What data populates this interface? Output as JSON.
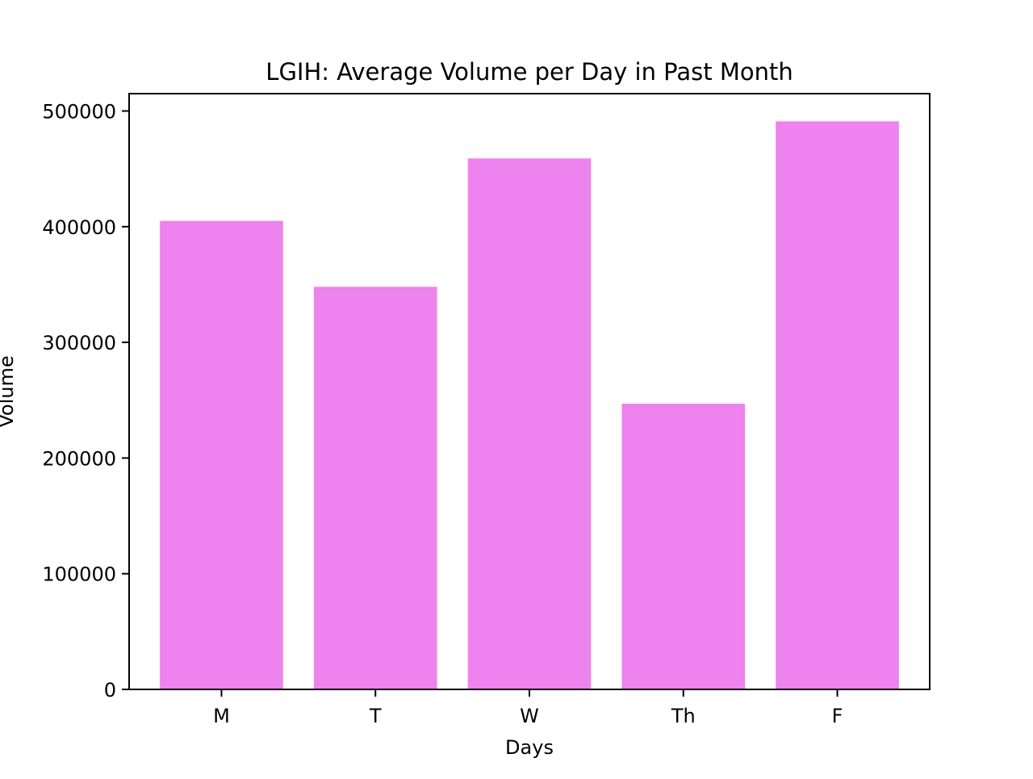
{
  "chart_data": {
    "type": "bar",
    "title": "LGIH: Average Volume per Day in Past Month",
    "xlabel": "Days",
    "ylabel": "Volume",
    "categories": [
      "M",
      "T",
      "W",
      "Th",
      "F"
    ],
    "values": [
      405000,
      348000,
      459000,
      247000,
      491000
    ],
    "ylim": [
      0,
      515000
    ],
    "yticks": [
      0,
      100000,
      200000,
      300000,
      400000,
      500000
    ],
    "ytick_labels": [
      "0",
      "100000",
      "200000",
      "300000",
      "400000",
      "500000"
    ],
    "bar_color": "#ee82ee",
    "grid": false,
    "legend": "none"
  }
}
